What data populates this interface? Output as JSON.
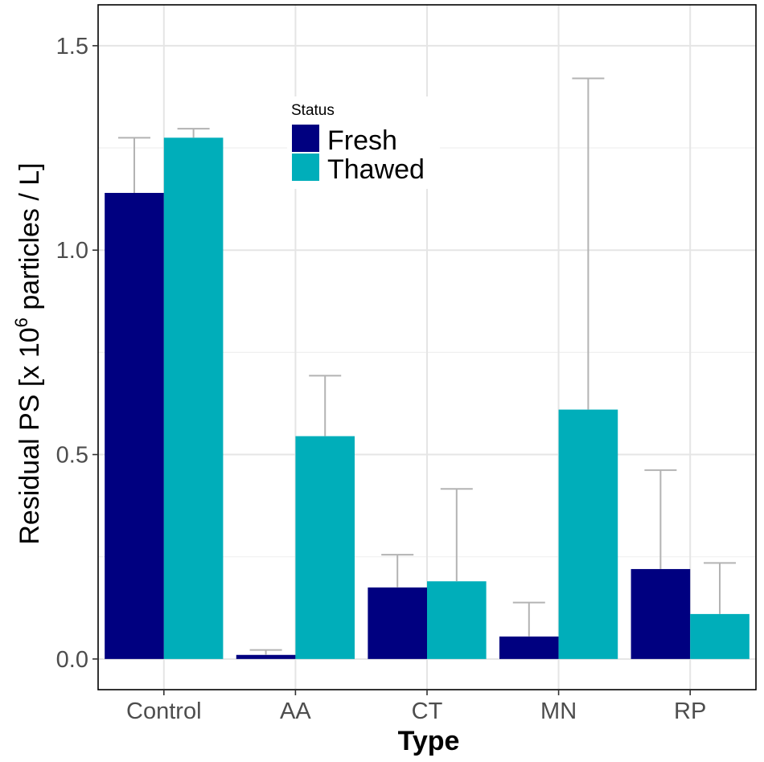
{
  "chart_data": {
    "type": "bar",
    "xlabel": "Type",
    "ylabel_main": "Residual PS [x 10",
    "ylabel_sup": "6",
    "ylabel_tail": " particles / L]",
    "categories": [
      "Control",
      "AA",
      "CT",
      "MN",
      "RP"
    ],
    "ylim": [
      -0.075,
      1.6
    ],
    "yticks": [
      0.0,
      0.5,
      1.0,
      1.5
    ],
    "ytick_labels": [
      "0.0",
      "0.5",
      "1.0",
      "1.5"
    ],
    "grid": true,
    "legend": {
      "title": "Status",
      "position": "top-center"
    },
    "series": [
      {
        "name": "Fresh",
        "color": "#000080",
        "values": [
          1.14,
          0.01,
          0.175,
          0.055,
          0.22
        ],
        "err_upper": [
          1.275,
          0.022,
          0.255,
          0.138,
          0.462
        ]
      },
      {
        "name": "Thawed",
        "color": "#00AEBA",
        "values": [
          1.275,
          0.545,
          0.19,
          0.61,
          0.11
        ],
        "err_upper": [
          1.297,
          0.693,
          0.416,
          1.42,
          0.235
        ]
      }
    ]
  }
}
